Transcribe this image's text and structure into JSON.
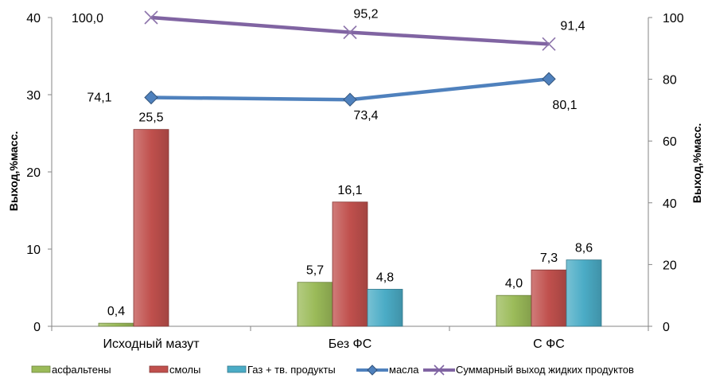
{
  "chart_data": {
    "type": "bar",
    "categories": [
      "Исходный мазут",
      "Без ФС",
      "С ФС"
    ],
    "series": [
      {
        "name": "асфальтены",
        "axis": "left",
        "kind": "bar",
        "color": "#9bbb59",
        "values": [
          0.4,
          5.7,
          4.0
        ],
        "labels": [
          "0,4",
          "5,7",
          "4,0"
        ]
      },
      {
        "name": "смолы",
        "axis": "left",
        "kind": "bar",
        "color": "#c0504d",
        "values": [
          25.5,
          16.1,
          7.3
        ],
        "labels": [
          "25,5",
          "16,1",
          "7,3"
        ]
      },
      {
        "name": "Газ + тв. продукты",
        "axis": "left",
        "kind": "bar",
        "color": "#4bacc6",
        "values": [
          null,
          4.8,
          8.6
        ],
        "labels": [
          "",
          "4,8",
          "8,6"
        ]
      },
      {
        "name": "масла",
        "axis": "right",
        "kind": "line",
        "color": "#4f81bd",
        "marker": "diamond",
        "values": [
          74.1,
          73.4,
          80.1
        ],
        "labels": [
          "74,1",
          "73,4",
          "80,1"
        ]
      },
      {
        "name": "Суммарный выход жидких продуктов",
        "axis": "right",
        "kind": "line",
        "color": "#8064a2",
        "marker": "x",
        "values": [
          100.0,
          95.2,
          91.4
        ],
        "labels": [
          "100,0",
          "95,2",
          "91,4"
        ]
      }
    ],
    "ylabel": "Выход,%масс.",
    "y2label": "Выход,%масс.",
    "ylim": [
      0,
      40
    ],
    "y2lim": [
      0,
      100
    ],
    "yticks": [
      "0",
      "10",
      "20",
      "30",
      "40"
    ],
    "y2ticks": [
      "0",
      "20",
      "40",
      "60",
      "80",
      "100"
    ],
    "grid": false,
    "legend": "bottom"
  }
}
